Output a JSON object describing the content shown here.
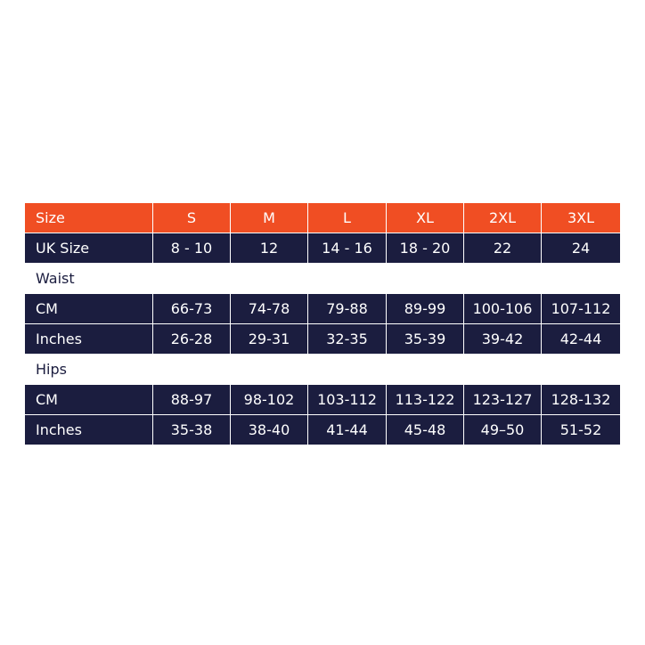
{
  "table": {
    "header": [
      "Size",
      "S",
      "M",
      "L",
      "XL",
      "2XL",
      "3XL"
    ],
    "rows": [
      [
        "UK Size",
        "8 - 10",
        "12",
        "14 - 16",
        "18 - 20",
        "22",
        "24"
      ]
    ]
  },
  "sections": [
    {
      "title": "Waist",
      "rows": [
        [
          "CM",
          "66-73",
          "74-78",
          "79-88",
          "89-99",
          "100-106",
          "107-112"
        ],
        [
          "Inches",
          "26-28",
          "29-31",
          "32-35",
          "35-39",
          "39-42",
          "42-44"
        ]
      ]
    },
    {
      "title": "Hips",
      "rows": [
        [
          "CM",
          "88-97",
          "98-102",
          "103-112",
          "113-122",
          "123-127",
          "128-132"
        ],
        [
          "Inches",
          "35-38",
          "38-40",
          "41-44",
          "45-48",
          "49–50",
          "51-52"
        ]
      ]
    }
  ]
}
